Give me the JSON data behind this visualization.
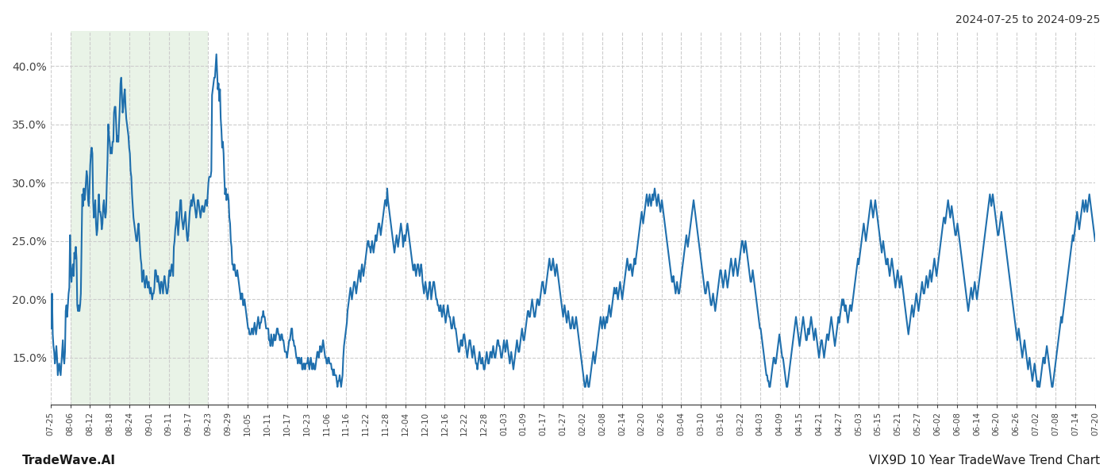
{
  "title_top_right": "2024-07-25 to 2024-09-25",
  "footer_left": "TradeWave.AI",
  "footer_right": "VIX9D 10 Year TradeWave Trend Chart",
  "line_color": "#1f6fad",
  "line_width": 1.5,
  "background_color": "#ffffff",
  "grid_color": "#cccccc",
  "grid_style": "--",
  "shade_color": "#d4e8d0",
  "shade_alpha": 0.5,
  "ylim": [
    11.0,
    43.0
  ],
  "yticks": [
    15.0,
    20.0,
    25.0,
    30.0,
    35.0,
    40.0
  ],
  "x_labels": [
    "07-25",
    "08-06",
    "08-12",
    "08-18",
    "08-24",
    "09-01",
    "09-11",
    "09-17",
    "09-23",
    "09-29",
    "10-05",
    "10-11",
    "10-17",
    "10-23",
    "11-06",
    "11-16",
    "11-22",
    "11-28",
    "12-04",
    "12-10",
    "12-16",
    "12-22",
    "12-28",
    "01-03",
    "01-09",
    "01-17",
    "01-27",
    "02-02",
    "02-08",
    "02-14",
    "02-20",
    "02-26",
    "03-04",
    "03-10",
    "03-16",
    "03-22",
    "04-03",
    "04-09",
    "04-15",
    "04-21",
    "04-27",
    "05-03",
    "05-15",
    "05-21",
    "05-27",
    "06-02",
    "06-08",
    "06-14",
    "06-20",
    "06-26",
    "07-02",
    "07-08",
    "07-14",
    "07-20"
  ],
  "shade_start_label": "08-06",
  "shade_end_label": "09-23",
  "values": [
    18.0,
    17.5,
    20.5,
    17.0,
    16.0,
    15.5,
    14.5,
    15.0,
    16.0,
    15.0,
    13.5,
    14.0,
    14.5,
    14.0,
    13.5,
    14.5,
    15.5,
    16.5,
    15.0,
    14.5,
    15.5,
    19.0,
    19.5,
    18.5,
    19.5,
    20.5,
    21.0,
    25.5,
    22.5,
    21.5,
    22.5,
    23.0,
    22.0,
    24.0,
    23.5,
    24.5,
    23.5,
    19.5,
    19.0,
    19.5,
    19.0,
    19.5,
    20.5,
    25.0,
    29.0,
    28.0,
    29.5,
    28.5,
    29.0,
    30.0,
    31.0,
    30.5,
    28.5,
    28.0,
    29.5,
    31.5,
    32.5,
    33.0,
    32.5,
    28.5,
    27.0,
    27.5,
    28.5,
    26.5,
    25.5,
    26.0,
    27.5,
    29.0,
    27.5,
    27.5,
    27.0,
    26.0,
    26.5,
    28.0,
    28.5,
    27.5,
    27.0,
    27.5,
    30.0,
    32.0,
    35.0,
    34.0,
    33.5,
    32.5,
    33.0,
    32.5,
    33.5,
    33.5,
    36.0,
    36.5,
    36.5,
    35.0,
    33.5,
    34.0,
    33.5,
    35.0,
    36.5,
    38.5,
    39.0,
    37.5,
    36.0,
    36.5,
    37.5,
    38.0,
    36.5,
    35.5,
    35.0,
    34.5,
    34.0,
    33.0,
    32.5,
    31.0,
    30.5,
    29.0,
    28.0,
    27.0,
    26.5,
    26.0,
    25.5,
    25.0,
    25.0,
    26.0,
    26.5,
    25.5,
    24.5,
    23.5,
    23.0,
    21.5,
    22.0,
    22.5,
    21.5,
    21.0,
    21.5,
    22.0,
    21.5,
    21.0,
    21.5,
    21.0,
    20.5,
    21.0,
    20.5,
    20.0,
    20.5,
    20.5,
    21.0,
    22.5,
    22.5,
    22.0,
    21.5,
    22.0,
    21.5,
    21.0,
    20.5,
    21.5,
    21.5,
    21.0,
    20.5,
    21.5,
    22.0,
    21.5,
    21.0,
    20.5,
    20.5,
    21.0,
    22.0,
    22.5,
    22.0,
    22.5,
    23.0,
    22.5,
    22.0,
    24.5,
    25.0,
    26.0,
    26.5,
    27.5,
    26.5,
    25.5,
    26.5,
    27.5,
    28.5,
    28.5,
    27.0,
    26.5,
    26.0,
    26.5,
    27.0,
    27.5,
    26.5,
    25.5,
    25.0,
    25.5,
    26.5,
    27.5,
    28.0,
    28.5,
    28.0,
    28.5,
    29.0,
    28.5,
    28.0,
    27.5,
    27.0,
    27.5,
    28.5,
    28.5,
    28.0,
    27.5,
    27.0,
    27.5,
    28.0,
    28.0,
    27.5,
    27.5,
    28.0,
    28.5,
    28.5,
    28.0,
    29.0,
    30.0,
    30.5,
    30.5,
    30.5,
    31.0,
    37.5,
    38.0,
    38.5,
    39.0,
    39.0,
    40.0,
    41.0,
    39.5,
    38.0,
    38.5,
    37.0,
    38.0,
    35.5,
    34.5,
    33.0,
    33.5,
    32.5,
    30.5,
    29.0,
    29.5,
    28.5,
    29.0,
    29.0,
    28.5,
    27.0,
    26.5,
    25.0,
    24.5,
    23.0,
    23.0,
    22.5,
    23.0,
    22.5,
    22.0,
    22.0,
    22.5,
    22.0,
    21.5,
    21.0,
    20.5,
    20.0,
    20.5,
    20.5,
    19.5,
    19.5,
    20.0,
    19.5,
    19.0,
    18.5,
    18.0,
    17.5,
    17.5,
    17.0,
    17.0,
    17.0,
    17.5,
    17.5,
    17.0,
    17.5,
    18.0,
    17.5,
    17.0,
    17.5,
    18.0,
    18.5,
    18.0,
    17.5,
    18.0,
    18.0,
    18.5,
    18.5,
    19.0,
    18.5,
    18.5,
    18.0,
    17.5,
    17.5,
    17.5,
    17.5,
    16.5,
    16.5,
    16.0,
    17.0,
    16.5,
    16.0,
    16.5,
    17.0,
    16.5,
    16.5,
    17.0,
    17.5,
    17.5,
    17.0,
    17.0,
    16.5,
    16.5,
    17.0,
    17.0,
    16.5,
    16.5,
    16.0,
    15.5,
    15.5,
    15.5,
    15.0,
    15.5,
    16.0,
    16.5,
    16.5,
    17.0,
    17.5,
    17.5,
    16.5,
    16.5,
    16.0,
    16.0,
    15.5,
    15.0,
    15.0,
    14.5,
    15.0,
    15.0,
    14.5,
    14.5,
    15.0,
    14.0,
    14.0,
    14.5,
    14.5,
    14.0,
    14.5,
    14.5,
    14.5,
    15.0,
    14.5,
    14.0,
    14.5,
    15.0,
    14.5,
    14.0,
    14.5,
    14.5,
    14.0,
    14.0,
    14.5,
    15.0,
    15.5,
    15.5,
    15.0,
    15.5,
    16.0,
    15.5,
    15.5,
    16.0,
    16.5,
    16.0,
    15.5,
    15.0,
    15.0,
    14.5,
    14.5,
    15.0,
    15.0,
    14.5,
    14.5,
    14.5,
    14.0,
    14.0,
    13.5,
    14.0,
    13.5,
    13.5,
    13.5,
    13.0,
    12.5,
    13.0,
    13.0,
    13.5,
    13.0,
    12.5,
    13.0,
    13.5,
    15.0,
    16.0,
    16.5,
    17.0,
    17.5,
    18.0,
    19.0,
    19.5,
    20.0,
    20.5,
    21.0,
    20.5,
    20.0,
    20.5,
    21.0,
    21.5,
    21.5,
    21.0,
    20.5,
    21.0,
    21.5,
    22.0,
    22.5,
    22.0,
    21.5,
    22.5,
    23.0,
    22.5,
    22.0,
    22.5,
    23.0,
    23.5,
    24.0,
    24.5,
    25.0,
    25.0,
    24.5,
    24.5,
    24.0,
    24.5,
    25.0,
    24.5,
    24.0,
    24.5,
    25.0,
    25.5,
    25.0,
    25.5,
    26.0,
    26.5,
    26.5,
    26.0,
    25.5,
    26.0,
    26.5,
    27.0,
    27.5,
    28.0,
    28.5,
    28.5,
    28.0,
    29.5,
    28.5,
    28.0,
    27.5,
    27.0,
    26.5,
    26.0,
    25.5,
    25.0,
    24.5,
    24.0,
    24.5,
    25.0,
    25.5,
    25.0,
    24.5,
    25.0,
    25.5,
    26.0,
    26.5,
    26.0,
    25.5,
    24.5,
    25.0,
    25.5,
    25.0,
    25.5,
    26.0,
    26.5,
    26.0,
    25.5,
    25.0,
    24.5,
    24.0,
    23.5,
    23.0,
    22.5,
    22.5,
    23.0,
    22.5,
    22.0,
    22.5,
    23.0,
    23.0,
    22.5,
    22.0,
    22.5,
    23.0,
    22.5,
    21.5,
    21.0,
    20.5,
    21.0,
    21.5,
    21.0,
    20.5,
    20.0,
    20.5,
    21.0,
    21.5,
    21.0,
    20.0,
    20.5,
    21.0,
    21.5,
    21.5,
    21.0,
    20.5,
    20.0,
    20.0,
    19.5,
    19.5,
    19.0,
    19.0,
    19.5,
    19.0,
    18.5,
    19.0,
    19.5,
    19.0,
    18.5,
    18.0,
    18.5,
    19.0,
    19.5,
    19.0,
    18.5,
    18.5,
    18.0,
    17.5,
    17.5,
    18.0,
    18.5,
    18.0,
    17.5,
    17.5,
    17.0,
    16.5,
    16.0,
    15.5,
    15.5,
    16.0,
    16.5,
    16.5,
    16.0,
    16.5,
    17.0,
    17.0,
    16.5,
    16.0,
    15.5,
    15.0,
    15.5,
    16.0,
    16.5,
    16.5,
    16.0,
    15.5,
    15.0,
    15.5,
    16.0,
    15.5,
    15.0,
    14.5,
    14.5,
    14.0,
    14.5,
    15.0,
    15.5,
    15.0,
    14.5,
    14.5,
    15.0,
    14.5,
    14.0,
    14.0,
    14.5,
    15.0,
    15.5,
    15.0,
    14.5,
    14.5,
    15.0,
    15.5,
    15.5,
    15.0,
    15.5,
    16.0,
    15.5,
    15.0,
    15.0,
    15.5,
    16.0,
    16.5,
    16.5,
    16.0,
    16.0,
    15.5,
    15.0,
    15.0,
    15.5,
    16.0,
    16.5,
    16.0,
    15.5,
    16.0,
    16.5,
    16.0,
    15.5,
    15.0,
    14.5,
    15.0,
    15.5,
    15.0,
    14.5,
    14.0,
    14.5,
    15.0,
    15.5,
    16.0,
    16.5,
    16.0,
    15.5,
    15.5,
    16.0,
    16.5,
    17.0,
    17.5,
    17.0,
    16.5,
    16.5,
    17.0,
    17.5,
    18.0,
    18.5,
    19.0,
    19.0,
    18.5,
    18.5,
    19.0,
    19.5,
    20.0,
    19.5,
    19.0,
    18.5,
    18.5,
    19.0,
    19.5,
    20.0,
    20.0,
    19.5,
    19.5,
    20.0,
    20.5,
    21.0,
    21.5,
    21.5,
    21.0,
    20.5,
    20.5,
    21.0,
    21.5,
    22.0,
    22.5,
    23.0,
    23.5,
    23.0,
    22.5,
    22.5,
    23.0,
    23.5,
    23.0,
    22.5,
    22.0,
    22.5,
    23.0,
    22.5,
    22.0,
    21.5,
    21.0,
    20.5,
    20.0,
    19.5,
    19.0,
    18.5,
    19.0,
    19.5,
    19.0,
    18.5,
    18.0,
    18.5,
    19.0,
    18.5,
    18.0,
    17.5,
    17.5,
    18.0,
    18.5,
    18.0,
    17.5,
    17.5,
    18.0,
    18.5,
    18.0,
    17.5,
    17.0,
    16.5,
    16.0,
    15.5,
    15.0,
    14.5,
    14.0,
    13.5,
    13.0,
    12.5,
    12.5,
    13.0,
    13.5,
    13.0,
    12.5,
    12.5,
    13.0,
    13.5,
    14.0,
    14.5,
    15.0,
    15.5,
    15.0,
    14.5,
    15.0,
    15.5,
    16.0,
    16.5,
    17.0,
    17.5,
    18.0,
    18.5,
    18.0,
    17.5,
    18.0,
    18.5,
    18.0,
    17.5,
    18.0,
    18.5,
    18.0,
    18.5,
    19.0,
    19.5,
    19.0,
    18.5,
    19.0,
    19.5,
    20.0,
    20.5,
    21.0,
    20.5,
    20.5,
    21.0,
    20.5,
    20.0,
    20.5,
    21.0,
    21.5,
    21.0,
    20.5,
    20.0,
    20.5,
    21.0,
    21.5,
    22.0,
    22.5,
    23.0,
    23.5,
    23.0,
    22.5,
    22.5,
    23.0,
    23.0,
    22.5,
    22.0,
    22.5,
    23.0,
    23.5,
    23.0,
    23.5,
    24.0,
    24.5,
    25.0,
    25.5,
    26.0,
    26.5,
    27.0,
    27.5,
    27.0,
    26.5,
    27.0,
    27.5,
    28.0,
    28.5,
    29.0,
    28.5,
    28.0,
    28.5,
    29.0,
    28.5,
    28.0,
    28.5,
    29.0,
    28.5,
    29.0,
    29.5,
    29.0,
    28.5,
    28.0,
    28.5,
    29.0,
    28.5,
    28.0,
    27.5,
    28.0,
    28.5,
    28.0,
    27.5,
    27.0,
    26.5,
    26.0,
    25.5,
    25.0,
    24.5,
    24.0,
    23.5,
    23.0,
    22.5,
    22.0,
    21.5,
    21.5,
    22.0,
    21.5,
    21.0,
    20.5,
    21.0,
    21.5,
    21.0,
    20.5,
    20.5,
    21.0,
    21.5,
    22.0,
    22.5,
    23.0,
    23.5,
    24.0,
    24.5,
    25.0,
    25.5,
    25.0,
    24.5,
    25.0,
    25.5,
    26.0,
    26.5,
    27.0,
    27.5,
    28.0,
    28.5,
    28.0,
    27.5,
    27.0,
    26.5,
    26.0,
    25.5,
    25.0,
    24.5,
    24.0,
    23.5,
    23.0,
    22.5,
    22.0,
    21.5,
    21.0,
    20.5,
    20.5,
    21.0,
    21.5,
    21.5,
    21.0,
    20.5,
    20.0,
    19.5,
    19.5,
    20.0,
    20.5,
    20.0,
    19.5,
    19.0,
    19.5,
    20.0,
    20.5,
    21.0,
    21.5,
    22.0,
    22.5,
    22.5,
    22.0,
    21.5,
    21.0,
    21.5,
    22.0,
    22.5,
    22.0,
    21.5,
    21.0,
    21.5,
    22.0,
    22.5,
    23.0,
    23.5,
    23.0,
    22.5,
    22.0,
    22.5,
    23.0,
    23.5,
    23.0,
    22.5,
    22.0,
    22.5,
    23.0,
    23.5,
    24.0,
    24.5,
    25.0,
    25.0,
    24.5,
    24.0,
    24.5,
    25.0,
    24.5,
    24.0,
    23.5,
    23.0,
    22.5,
    22.0,
    21.5,
    21.5,
    22.0,
    22.5,
    22.0,
    21.5,
    21.0,
    20.5,
    20.0,
    19.5,
    19.0,
    18.5,
    18.0,
    17.5,
    17.5,
    17.0,
    16.5,
    16.0,
    15.5,
    15.0,
    14.5,
    14.0,
    13.5,
    13.5,
    13.0,
    13.0,
    12.5,
    12.5,
    13.0,
    13.5,
    14.0,
    14.5,
    15.0,
    15.0,
    14.5,
    14.5,
    15.0,
    15.5,
    16.0,
    16.5,
    17.0,
    16.5,
    16.0,
    15.5,
    15.0,
    15.0,
    14.5,
    14.0,
    13.5,
    13.0,
    12.5,
    12.5,
    13.0,
    13.5,
    14.0,
    14.5,
    15.0,
    15.5,
    16.0,
    16.5,
    17.0,
    17.5,
    18.0,
    18.5,
    18.0,
    17.5,
    17.0,
    16.5,
    16.0,
    16.5,
    17.0,
    17.5,
    18.0,
    18.5,
    18.0,
    17.5,
    17.0,
    16.5,
    16.5,
    17.0,
    17.5,
    17.0,
    17.5,
    18.0,
    18.5,
    18.0,
    17.5,
    17.0,
    16.5,
    17.0,
    17.5,
    17.0,
    16.5,
    16.0,
    15.5,
    15.0,
    15.5,
    16.0,
    16.5,
    16.5,
    16.0,
    15.5,
    15.0,
    15.5,
    16.0,
    16.5,
    17.0,
    17.0,
    16.5,
    17.0,
    17.5,
    18.0,
    18.5,
    18.0,
    17.5,
    17.0,
    16.5,
    16.0,
    16.5,
    17.0,
    17.5,
    18.0,
    18.5,
    18.0,
    18.5,
    19.0,
    19.5,
    20.0,
    19.5,
    20.0,
    19.5,
    19.0,
    19.5,
    19.0,
    18.5,
    18.0,
    18.5,
    19.0,
    19.5,
    19.5,
    19.0,
    19.5,
    20.0,
    20.5,
    21.0,
    21.5,
    22.0,
    22.5,
    23.0,
    23.5,
    23.0,
    23.5,
    24.0,
    24.5,
    25.0,
    25.5,
    26.0,
    26.5,
    26.0,
    25.5,
    25.0,
    25.5,
    26.0,
    26.5,
    27.0,
    27.5,
    28.0,
    28.5,
    28.0,
    27.5,
    27.0,
    27.5,
    28.0,
    28.5,
    28.0,
    27.5,
    27.0,
    26.5,
    26.0,
    25.5,
    25.0,
    24.5,
    24.0,
    24.5,
    25.0,
    24.5,
    24.0,
    23.5,
    23.0,
    23.0,
    23.5,
    23.0,
    22.5,
    22.0,
    22.5,
    23.0,
    23.5,
    23.0,
    22.5,
    22.0,
    21.5,
    21.0,
    21.5,
    22.0,
    22.5,
    22.0,
    21.5,
    21.0,
    21.5,
    22.0,
    21.5,
    21.0,
    20.5,
    20.0,
    19.5,
    19.0,
    18.5,
    18.0,
    17.5,
    17.0,
    17.5,
    18.0,
    18.5,
    19.0,
    19.5,
    19.0,
    18.5,
    19.0,
    19.5,
    20.0,
    20.5,
    20.0,
    19.5,
    19.0,
    19.5,
    20.0,
    20.5,
    21.0,
    21.5,
    21.0,
    20.5,
    20.5,
    21.0,
    21.5,
    22.0,
    21.5,
    21.0,
    21.5,
    22.0,
    22.5,
    22.0,
    21.5,
    22.0,
    22.5,
    23.0,
    23.5,
    23.0,
    22.5,
    22.0,
    22.5,
    23.0,
    23.5,
    24.0,
    24.5,
    25.0,
    25.5,
    26.0,
    26.5,
    27.0,
    27.0,
    26.5,
    27.0,
    27.5,
    28.0,
    28.5,
    28.0,
    27.5,
    27.0,
    27.5,
    28.0,
    27.5,
    27.0,
    26.5,
    26.0,
    25.5,
    25.5,
    26.0,
    26.5,
    26.0,
    25.5,
    25.0,
    24.5,
    24.0,
    23.5,
    23.0,
    22.5,
    22.0,
    21.5,
    21.0,
    20.5,
    20.0,
    19.5,
    19.0,
    19.5,
    20.0,
    20.5,
    21.0,
    20.5,
    20.0,
    20.5,
    21.0,
    21.5,
    21.0,
    20.5,
    20.0,
    20.5,
    21.0,
    21.5,
    22.0,
    22.5,
    23.0,
    23.5,
    24.0,
    24.5,
    25.0,
    25.5,
    26.0,
    26.5,
    27.0,
    27.5,
    28.0,
    28.5,
    29.0,
    28.5,
    28.0,
    28.5,
    29.0,
    28.5,
    28.0,
    27.5,
    27.0,
    26.5,
    26.0,
    25.5,
    25.5,
    26.0,
    26.5,
    27.0,
    27.5,
    27.0,
    26.5,
    26.0,
    25.5,
    25.0,
    24.5,
    24.0,
    23.5,
    23.0,
    22.5,
    22.0,
    21.5,
    21.0,
    20.5,
    20.0,
    19.5,
    19.0,
    18.5,
    18.0,
    17.5,
    17.0,
    16.5,
    17.0,
    17.5,
    17.0,
    16.5,
    16.0,
    15.5,
    15.0,
    15.5,
    16.0,
    16.5,
    16.0,
    15.5,
    15.0,
    14.5,
    14.0,
    14.5,
    15.0,
    14.5,
    14.0,
    13.5,
    13.0,
    13.5,
    14.0,
    14.5,
    14.0,
    13.5,
    13.0,
    12.5,
    13.0,
    12.5,
    12.5,
    13.0,
    13.5,
    14.0,
    14.5,
    15.0,
    15.0,
    14.5,
    15.0,
    15.5,
    16.0,
    15.5,
    15.0,
    14.5,
    14.0,
    13.5,
    13.0,
    12.5,
    12.5,
    13.0,
    13.5,
    14.0,
    14.5,
    15.0,
    15.5,
    16.0,
    16.5,
    17.0,
    17.5,
    18.0,
    18.5,
    18.0,
    18.5,
    19.0,
    19.5,
    20.0,
    20.5,
    21.0,
    21.5,
    22.0,
    22.5,
    23.0,
    23.5,
    24.0,
    24.5,
    25.0,
    25.5,
    25.0,
    25.5,
    26.0,
    26.5,
    27.0,
    27.5,
    27.0,
    26.5,
    26.0,
    26.5,
    27.0,
    27.5,
    28.0,
    28.5,
    28.0,
    27.5,
    28.0,
    28.5,
    28.0,
    27.5,
    28.0,
    28.5,
    29.0,
    28.5,
    28.0,
    27.5,
    27.0,
    26.5,
    26.0,
    25.5,
    25.0
  ]
}
